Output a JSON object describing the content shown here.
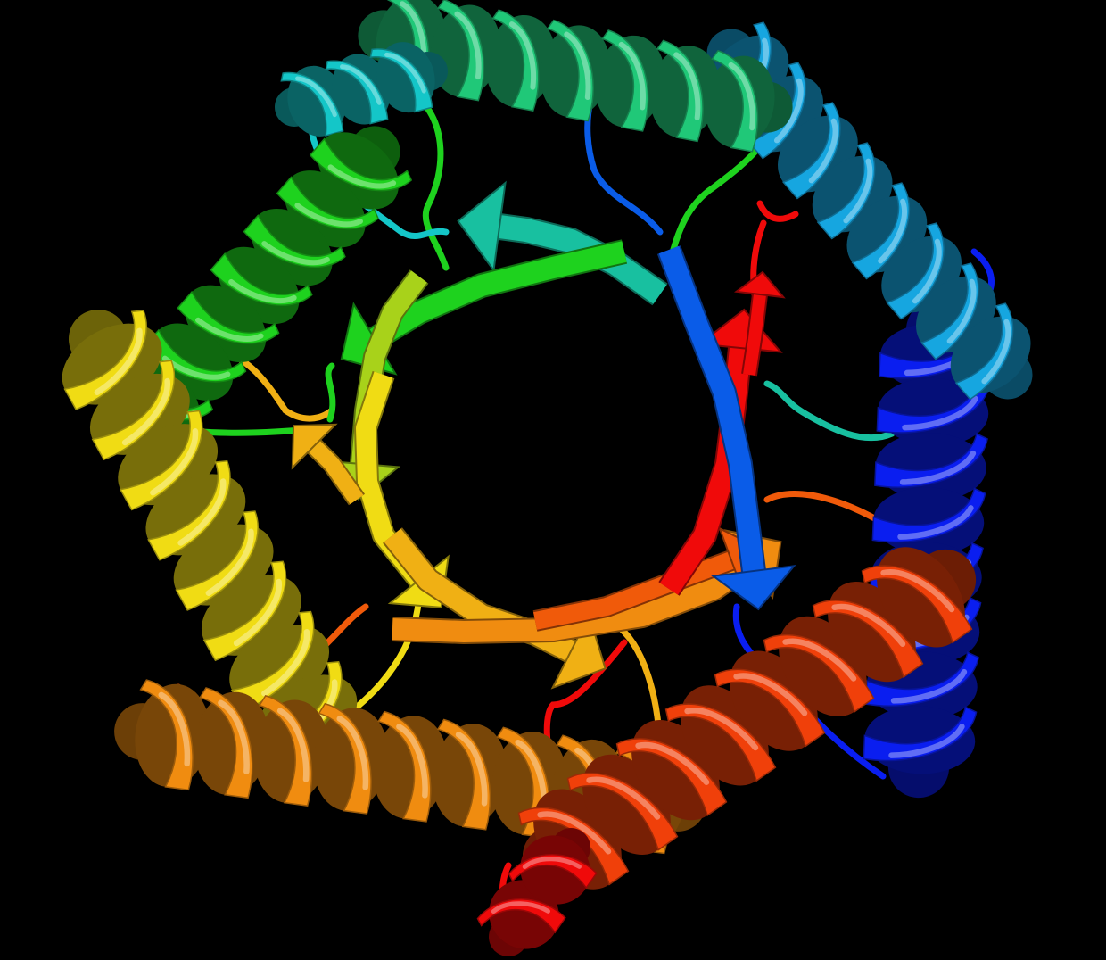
{
  "image": {
    "subject": "protein-ribbon",
    "background_color": "#000000",
    "palette": {
      "blue": "#0a1ef0",
      "mid_blue": "#0a5ce8",
      "sky_blue": "#16a6e0",
      "cyan": "#14c6c8",
      "teal": "#18c0a0",
      "green_teal": "#20c878",
      "green": "#1ed21e",
      "lime": "#a8d21a",
      "yellow": "#f0dc14",
      "gold": "#f0b014",
      "orange": "#f08c10",
      "dark_orange": "#f05a0a",
      "red_orange": "#f0400a",
      "red": "#f00a0a"
    }
  }
}
